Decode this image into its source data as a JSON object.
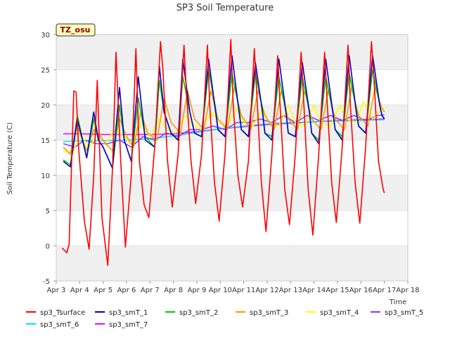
{
  "chart_data": {
    "type": "line",
    "title": "SP3 Soil Temperature",
    "xlabel": "Time",
    "ylabel": "Soil Temperature (C)",
    "xlim": [
      3,
      18
    ],
    "ylim": [
      -5,
      30
    ],
    "x_ticks": [
      3,
      4,
      5,
      6,
      7,
      8,
      9,
      10,
      11,
      12,
      13,
      14,
      15,
      16,
      17,
      18
    ],
    "x_tick_labels": [
      "Apr 3",
      "Apr 4",
      "Apr 5",
      "Apr 6",
      "Apr 7",
      "Apr 8",
      "Apr 9",
      "Apr 10",
      "Apr 11",
      "Apr 12",
      "Apr 13",
      "Apr 14",
      "Apr 15",
      "Apr 16",
      "Apr 17",
      "Apr 18"
    ],
    "y_ticks": [
      -5,
      0,
      5,
      10,
      15,
      20,
      25,
      30
    ],
    "y_tick_labels": [
      "-5",
      "0",
      "5",
      "10",
      "15",
      "20",
      "25",
      "30"
    ],
    "annotation": "TZ_osu",
    "series": [
      {
        "name": "sp3_Tsurface",
        "color": "#ff0000",
        "x": [
          3.25,
          3.45,
          3.55,
          3.75,
          3.85,
          3.95,
          4.2,
          4.4,
          4.6,
          4.75,
          4.95,
          5.2,
          5.4,
          5.55,
          5.75,
          5.95,
          6.2,
          6.4,
          6.55,
          6.75,
          6.95,
          7.2,
          7.45,
          7.55,
          7.75,
          7.95,
          8.2,
          8.45,
          8.55,
          8.75,
          8.95,
          9.2,
          9.45,
          9.55,
          9.75,
          9.95,
          10.2,
          10.45,
          10.55,
          10.75,
          10.95,
          11.2,
          11.45,
          11.55,
          11.75,
          11.95,
          12.2,
          12.45,
          12.55,
          12.75,
          12.95,
          13.2,
          13.45,
          13.55,
          13.75,
          13.95,
          14.2,
          14.45,
          14.55,
          14.75,
          14.95,
          15.2,
          15.45,
          15.55,
          15.75,
          15.95,
          16.2,
          16.45,
          16.55,
          16.75,
          16.95,
          17.0
        ],
        "y": [
          -0.3,
          -1.0,
          0.2,
          22.0,
          21.8,
          14.0,
          3.5,
          -0.5,
          10.0,
          23.5,
          4.0,
          -2.8,
          11.0,
          27.5,
          12.0,
          -0.2,
          10.0,
          28.0,
          12.0,
          5.8,
          4.0,
          14.0,
          29.0,
          25.0,
          12.0,
          5.5,
          13.0,
          28.5,
          22.0,
          12.0,
          6.0,
          13.0,
          28.5,
          20.0,
          9.0,
          3.5,
          13.0,
          29.3,
          20.0,
          10.0,
          5.5,
          12.0,
          28.0,
          22.0,
          9.0,
          2.0,
          13.0,
          27.0,
          20.0,
          8.0,
          3.0,
          13.0,
          27.5,
          21.0,
          8.0,
          1.5,
          13.0,
          27.5,
          21.0,
          9.0,
          3.3,
          14.0,
          28.5,
          20.0,
          9.0,
          3.2,
          14.0,
          29.0,
          24.0,
          12.0,
          8.0,
          7.5
        ]
      },
      {
        "name": "sp3_smT_1",
        "color": "#0000cc",
        "x": [
          3.3,
          3.6,
          3.9,
          4.3,
          4.6,
          4.8,
          5.0,
          5.4,
          5.7,
          5.9,
          6.2,
          6.5,
          6.8,
          7.2,
          7.4,
          7.6,
          7.9,
          8.2,
          8.4,
          8.7,
          8.9,
          9.2,
          9.5,
          9.8,
          9.9,
          10.2,
          10.5,
          10.8,
          10.9,
          11.2,
          11.5,
          11.8,
          11.9,
          12.2,
          12.5,
          12.8,
          12.9,
          13.2,
          13.5,
          13.8,
          13.9,
          14.2,
          14.5,
          14.8,
          14.9,
          15.2,
          15.5,
          15.8,
          15.9,
          16.2,
          16.5,
          16.8,
          16.9,
          17.0
        ],
        "y": [
          12.0,
          11.2,
          18.0,
          12.5,
          19.0,
          15.0,
          14.0,
          11.0,
          22.5,
          15.0,
          12.0,
          24.0,
          15.0,
          14.0,
          25.5,
          19.0,
          16.0,
          15.0,
          26.5,
          19.0,
          16.0,
          15.5,
          26.5,
          19.0,
          16.5,
          15.5,
          27.0,
          19.0,
          16.5,
          15.5,
          26.0,
          19.0,
          16.0,
          15.0,
          26.5,
          19.0,
          16.0,
          15.5,
          26.0,
          19.0,
          16.0,
          14.5,
          26.5,
          19.0,
          16.5,
          15.0,
          27.0,
          19.0,
          17.0,
          16.0,
          27.0,
          20.0,
          18.5,
          18.0
        ]
      },
      {
        "name": "sp3_smT_2",
        "color": "#00cc00",
        "x": [
          3.3,
          3.6,
          3.9,
          4.3,
          4.6,
          4.8,
          5.0,
          5.4,
          5.7,
          5.9,
          6.2,
          6.5,
          6.8,
          7.2,
          7.4,
          7.6,
          7.9,
          8.2,
          8.4,
          8.7,
          8.9,
          9.2,
          9.5,
          9.8,
          9.9,
          10.2,
          10.5,
          10.8,
          10.9,
          11.2,
          11.5,
          11.8,
          11.9,
          12.2,
          12.5,
          12.8,
          12.9,
          13.2,
          13.5,
          13.8,
          13.9,
          14.2,
          14.5,
          14.8,
          14.9,
          15.2,
          15.5,
          15.8,
          15.9,
          16.2,
          16.5,
          16.8,
          16.9,
          17.0
        ],
        "y": [
          12.2,
          11.5,
          18.5,
          12.5,
          18.0,
          15.0,
          14.0,
          11.0,
          20.0,
          15.0,
          12.0,
          21.0,
          15.5,
          14.0,
          23.5,
          19.0,
          16.0,
          15.0,
          24.0,
          19.0,
          16.0,
          15.5,
          25.0,
          19.5,
          16.5,
          15.5,
          24.5,
          19.5,
          16.5,
          15.5,
          24.5,
          19.5,
          16.0,
          15.5,
          24.0,
          19.0,
          16.0,
          15.5,
          24.0,
          19.0,
          16.0,
          15.0,
          24.0,
          19.0,
          16.5,
          15.5,
          24.5,
          19.5,
          17.0,
          16.0,
          25.0,
          20.0,
          18.5,
          18.0
        ]
      },
      {
        "name": "sp3_smT_3",
        "color": "#ff9900",
        "x": [
          3.3,
          3.6,
          3.9,
          4.3,
          4.6,
          4.9,
          5.1,
          5.4,
          5.7,
          6.0,
          6.3,
          6.6,
          6.9,
          7.3,
          7.6,
          7.9,
          8.3,
          8.6,
          8.9,
          9.3,
          9.6,
          9.9,
          10.3,
          10.6,
          10.9,
          11.3,
          11.6,
          11.9,
          12.3,
          12.6,
          12.9,
          13.3,
          13.6,
          13.9,
          14.3,
          14.6,
          14.9,
          15.3,
          15.6,
          15.9,
          16.3,
          16.6,
          16.9,
          17.0
        ],
        "y": [
          14.0,
          13.0,
          17.0,
          13.5,
          16.5,
          15.5,
          14.5,
          13.5,
          18.0,
          15.5,
          14.0,
          19.0,
          16.0,
          15.0,
          21.0,
          17.5,
          16.0,
          22.0,
          18.0,
          16.5,
          22.0,
          18.0,
          16.5,
          22.5,
          18.5,
          16.5,
          22.0,
          18.5,
          16.5,
          22.0,
          18.0,
          16.5,
          22.0,
          18.0,
          16.5,
          22.0,
          18.0,
          16.5,
          22.5,
          18.5,
          17.0,
          22.5,
          19.5,
          19.0
        ]
      },
      {
        "name": "sp3_smT_4",
        "color": "#ffff00",
        "x": [
          3.3,
          3.7,
          4.0,
          4.4,
          4.8,
          5.1,
          5.5,
          5.9,
          6.2,
          6.6,
          7.0,
          7.4,
          7.8,
          8.1,
          8.5,
          8.9,
          9.2,
          9.6,
          10.0,
          10.3,
          10.7,
          11.0,
          11.4,
          11.8,
          12.1,
          12.5,
          12.9,
          13.2,
          13.6,
          14.0,
          14.3,
          14.7,
          15.1,
          15.4,
          15.8,
          16.1,
          16.5,
          16.9,
          17.0
        ],
        "y": [
          13.5,
          13.0,
          16.0,
          14.0,
          16.0,
          14.5,
          16.5,
          15.5,
          14.5,
          17.5,
          15.5,
          18.0,
          16.5,
          16.0,
          18.5,
          17.0,
          16.5,
          19.0,
          17.5,
          17.0,
          19.5,
          17.5,
          17.0,
          19.5,
          17.5,
          17.0,
          20.0,
          17.5,
          17.0,
          20.0,
          17.5,
          17.0,
          20.0,
          18.0,
          17.5,
          20.5,
          18.0,
          19.5,
          19.5
        ]
      },
      {
        "name": "sp3_smT_5",
        "color": "#9933ff",
        "x": [
          3.3,
          3.8,
          4.2,
          4.7,
          5.2,
          5.7,
          6.2,
          6.7,
          7.2,
          7.7,
          8.2,
          8.7,
          9.2,
          9.7,
          10.2,
          10.7,
          11.2,
          11.7,
          12.2,
          12.7,
          13.2,
          13.7,
          14.2,
          14.7,
          15.2,
          15.7,
          16.2,
          16.7,
          17.0
        ],
        "y": [
          14.5,
          14.0,
          15.0,
          14.5,
          14.5,
          15.0,
          14.0,
          15.5,
          15.0,
          16.0,
          15.5,
          16.5,
          16.5,
          17.0,
          16.5,
          17.5,
          17.5,
          18.0,
          17.5,
          18.5,
          17.5,
          18.5,
          17.8,
          18.5,
          17.8,
          18.5,
          17.8,
          18.5,
          18.6
        ]
      },
      {
        "name": "sp3_smT_6",
        "color": "#00e0ff",
        "x": [
          3.3,
          4.0,
          5.0,
          6.0,
          7.0,
          8.0,
          9.0,
          10.0,
          11.0,
          12.0,
          13.0,
          14.0,
          15.0,
          16.0,
          17.0
        ],
        "y": [
          14.8,
          14.9,
          14.9,
          15.0,
          15.2,
          15.6,
          16.1,
          16.6,
          17.0,
          17.3,
          17.5,
          17.6,
          17.7,
          17.8,
          17.9
        ]
      },
      {
        "name": "sp3_smT_7",
        "color": "#ff00ff",
        "x": [
          3.3,
          4.0,
          5.0,
          6.0,
          7.0,
          8.0,
          9.0,
          10.0,
          11.0,
          12.0,
          13.0,
          14.0,
          15.0,
          16.0,
          17.0
        ],
        "y": [
          15.9,
          15.9,
          15.8,
          15.8,
          15.8,
          15.9,
          16.2,
          16.6,
          16.9,
          17.2,
          17.4,
          17.6,
          17.8,
          17.9,
          18.0
        ]
      }
    ]
  }
}
